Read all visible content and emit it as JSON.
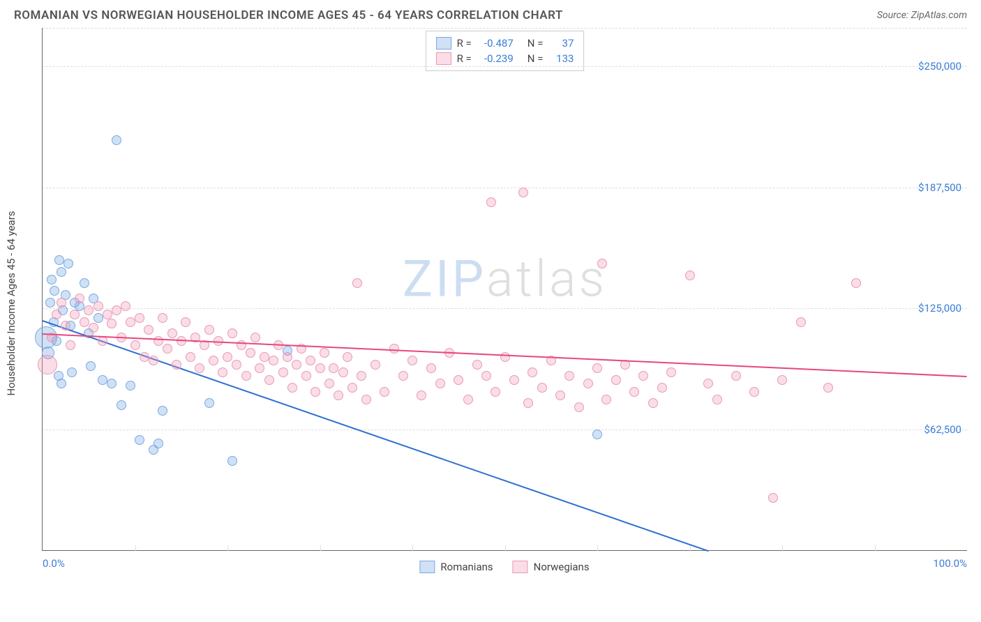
{
  "header": {
    "title": "ROMANIAN VS NORWEGIAN HOUSEHOLDER INCOME AGES 45 - 64 YEARS CORRELATION CHART",
    "source": "Source: ZipAtlas.com"
  },
  "chart": {
    "type": "scatter",
    "ylabel": "Householder Income Ages 45 - 64 years",
    "xlim": [
      0,
      100
    ],
    "ylim": [
      0,
      270000
    ],
    "x_ticks_pct": [
      0,
      10,
      20,
      30,
      40,
      50,
      60,
      70,
      80,
      90,
      100
    ],
    "x_tick_labels": {
      "left": "0.0%",
      "right": "100.0%"
    },
    "y_ticks": [
      62500,
      125000,
      187500,
      250000
    ],
    "y_tick_labels": [
      "$62,500",
      "$125,000",
      "$187,500",
      "$250,000"
    ],
    "background_color": "#ffffff",
    "grid_color": "#dddddd",
    "axis_color": "#666666",
    "tick_label_color": "#3b7dd8",
    "series": [
      {
        "key": "romanians",
        "label": "Romanians",
        "fill": "rgba(120,170,230,0.35)",
        "stroke": "#7aa9e0",
        "trend_color": "#2e6fd1",
        "marker_radius": 7,
        "R": "-0.487",
        "N": "37",
        "trend": {
          "x1": 0,
          "y1": 119000,
          "x2": 72,
          "y2": 0
        },
        "points": [
          {
            "x": 0.4,
            "y": 110000,
            "r": 16
          },
          {
            "x": 0.6,
            "y": 102000,
            "r": 9
          },
          {
            "x": 0.8,
            "y": 128000
          },
          {
            "x": 1.0,
            "y": 140000
          },
          {
            "x": 1.2,
            "y": 118000
          },
          {
            "x": 1.3,
            "y": 134000
          },
          {
            "x": 1.5,
            "y": 108000
          },
          {
            "x": 1.7,
            "y": 90000
          },
          {
            "x": 1.8,
            "y": 150000
          },
          {
            "x": 2.0,
            "y": 144000
          },
          {
            "x": 2.2,
            "y": 124000
          },
          {
            "x": 2.5,
            "y": 132000
          },
          {
            "x": 2.8,
            "y": 148000
          },
          {
            "x": 3.0,
            "y": 116000
          },
          {
            "x": 3.5,
            "y": 128000
          },
          {
            "x": 4.0,
            "y": 126000
          },
          {
            "x": 4.5,
            "y": 138000
          },
          {
            "x": 5.0,
            "y": 112000
          },
          {
            "x": 5.2,
            "y": 95000
          },
          {
            "x": 5.5,
            "y": 130000
          },
          {
            "x": 2.0,
            "y": 86000
          },
          {
            "x": 3.2,
            "y": 92000
          },
          {
            "x": 6.0,
            "y": 120000
          },
          {
            "x": 6.5,
            "y": 88000
          },
          {
            "x": 7.5,
            "y": 86000
          },
          {
            "x": 8.5,
            "y": 75000
          },
          {
            "x": 9.5,
            "y": 85000
          },
          {
            "x": 10.5,
            "y": 57000
          },
          {
            "x": 12.0,
            "y": 52000
          },
          {
            "x": 12.5,
            "y": 55000
          },
          {
            "x": 13.0,
            "y": 72000
          },
          {
            "x": 18.0,
            "y": 76000
          },
          {
            "x": 20.5,
            "y": 46000
          },
          {
            "x": 8.0,
            "y": 212000
          },
          {
            "x": 26.5,
            "y": 103000
          },
          {
            "x": 60.0,
            "y": 60000
          }
        ]
      },
      {
        "key": "norwegians",
        "label": "Norwegians",
        "fill": "rgba(240,150,180,0.32)",
        "stroke": "#e999b6",
        "trend_color": "#e6487a",
        "marker_radius": 7,
        "R": "-0.239",
        "N": "133",
        "trend": {
          "x1": 0,
          "y1": 112000,
          "x2": 100,
          "y2": 90000
        },
        "points": [
          {
            "x": 0.5,
            "y": 96000,
            "r": 14
          },
          {
            "x": 1.0,
            "y": 110000
          },
          {
            "x": 1.5,
            "y": 122000
          },
          {
            "x": 2.0,
            "y": 128000
          },
          {
            "x": 2.5,
            "y": 116000
          },
          {
            "x": 3.0,
            "y": 106000
          },
          {
            "x": 3.5,
            "y": 122000
          },
          {
            "x": 4.0,
            "y": 130000
          },
          {
            "x": 4.5,
            "y": 118000
          },
          {
            "x": 5.0,
            "y": 124000
          },
          {
            "x": 5.5,
            "y": 115000
          },
          {
            "x": 6.0,
            "y": 126000
          },
          {
            "x": 6.5,
            "y": 108000
          },
          {
            "x": 7.0,
            "y": 122000
          },
          {
            "x": 7.5,
            "y": 117000
          },
          {
            "x": 8.0,
            "y": 124000
          },
          {
            "x": 8.5,
            "y": 110000
          },
          {
            "x": 9.0,
            "y": 126000
          },
          {
            "x": 9.5,
            "y": 118000
          },
          {
            "x": 10.0,
            "y": 106000
          },
          {
            "x": 10.5,
            "y": 120000
          },
          {
            "x": 11.0,
            "y": 100000
          },
          {
            "x": 11.5,
            "y": 114000
          },
          {
            "x": 12.0,
            "y": 98000
          },
          {
            "x": 12.5,
            "y": 108000
          },
          {
            "x": 13.0,
            "y": 120000
          },
          {
            "x": 13.5,
            "y": 104000
          },
          {
            "x": 14.0,
            "y": 112000
          },
          {
            "x": 14.5,
            "y": 96000
          },
          {
            "x": 15.0,
            "y": 108000
          },
          {
            "x": 15.5,
            "y": 118000
          },
          {
            "x": 16.0,
            "y": 100000
          },
          {
            "x": 16.5,
            "y": 110000
          },
          {
            "x": 17.0,
            "y": 94000
          },
          {
            "x": 17.5,
            "y": 106000
          },
          {
            "x": 18.0,
            "y": 114000
          },
          {
            "x": 18.5,
            "y": 98000
          },
          {
            "x": 19.0,
            "y": 108000
          },
          {
            "x": 19.5,
            "y": 92000
          },
          {
            "x": 20.0,
            "y": 100000
          },
          {
            "x": 20.5,
            "y": 112000
          },
          {
            "x": 21.0,
            "y": 96000
          },
          {
            "x": 21.5,
            "y": 106000
          },
          {
            "x": 22.0,
            "y": 90000
          },
          {
            "x": 22.5,
            "y": 102000
          },
          {
            "x": 23.0,
            "y": 110000
          },
          {
            "x": 23.5,
            "y": 94000
          },
          {
            "x": 24.0,
            "y": 100000
          },
          {
            "x": 24.5,
            "y": 88000
          },
          {
            "x": 25.0,
            "y": 98000
          },
          {
            "x": 25.5,
            "y": 106000
          },
          {
            "x": 26.0,
            "y": 92000
          },
          {
            "x": 26.5,
            "y": 100000
          },
          {
            "x": 27.0,
            "y": 84000
          },
          {
            "x": 27.5,
            "y": 96000
          },
          {
            "x": 28.0,
            "y": 104000
          },
          {
            "x": 28.5,
            "y": 90000
          },
          {
            "x": 29.0,
            "y": 98000
          },
          {
            "x": 29.5,
            "y": 82000
          },
          {
            "x": 30.0,
            "y": 94000
          },
          {
            "x": 30.5,
            "y": 102000
          },
          {
            "x": 31.0,
            "y": 86000
          },
          {
            "x": 31.5,
            "y": 94000
          },
          {
            "x": 32.0,
            "y": 80000
          },
          {
            "x": 32.5,
            "y": 92000
          },
          {
            "x": 33.0,
            "y": 100000
          },
          {
            "x": 33.5,
            "y": 84000
          },
          {
            "x": 34.0,
            "y": 138000
          },
          {
            "x": 34.5,
            "y": 90000
          },
          {
            "x": 35.0,
            "y": 78000
          },
          {
            "x": 36.0,
            "y": 96000
          },
          {
            "x": 37.0,
            "y": 82000
          },
          {
            "x": 38.0,
            "y": 104000
          },
          {
            "x": 39.0,
            "y": 90000
          },
          {
            "x": 40.0,
            "y": 98000
          },
          {
            "x": 41.0,
            "y": 80000
          },
          {
            "x": 42.0,
            "y": 94000
          },
          {
            "x": 43.0,
            "y": 86000
          },
          {
            "x": 44.0,
            "y": 102000
          },
          {
            "x": 45.0,
            "y": 88000
          },
          {
            "x": 46.0,
            "y": 78000
          },
          {
            "x": 47.0,
            "y": 96000
          },
          {
            "x": 48.0,
            "y": 90000
          },
          {
            "x": 48.5,
            "y": 180000
          },
          {
            "x": 49.0,
            "y": 82000
          },
          {
            "x": 50.0,
            "y": 100000
          },
          {
            "x": 51.0,
            "y": 88000
          },
          {
            "x": 52.0,
            "y": 185000
          },
          {
            "x": 52.5,
            "y": 76000
          },
          {
            "x": 53.0,
            "y": 92000
          },
          {
            "x": 54.0,
            "y": 84000
          },
          {
            "x": 55.0,
            "y": 98000
          },
          {
            "x": 56.0,
            "y": 80000
          },
          {
            "x": 57.0,
            "y": 90000
          },
          {
            "x": 58.0,
            "y": 74000
          },
          {
            "x": 59.0,
            "y": 86000
          },
          {
            "x": 60.0,
            "y": 94000
          },
          {
            "x": 60.5,
            "y": 148000
          },
          {
            "x": 61.0,
            "y": 78000
          },
          {
            "x": 62.0,
            "y": 88000
          },
          {
            "x": 63.0,
            "y": 96000
          },
          {
            "x": 64.0,
            "y": 82000
          },
          {
            "x": 65.0,
            "y": 90000
          },
          {
            "x": 66.0,
            "y": 76000
          },
          {
            "x": 67.0,
            "y": 84000
          },
          {
            "x": 68.0,
            "y": 92000
          },
          {
            "x": 70.0,
            "y": 142000
          },
          {
            "x": 72.0,
            "y": 86000
          },
          {
            "x": 73.0,
            "y": 78000
          },
          {
            "x": 75.0,
            "y": 90000
          },
          {
            "x": 77.0,
            "y": 82000
          },
          {
            "x": 79.0,
            "y": 27000
          },
          {
            "x": 80.0,
            "y": 88000
          },
          {
            "x": 82.0,
            "y": 118000
          },
          {
            "x": 85.0,
            "y": 84000
          },
          {
            "x": 88.0,
            "y": 138000
          }
        ]
      }
    ],
    "watermark": {
      "z": "ZIP",
      "rest": "atlas"
    },
    "stats_labels": {
      "R": "R =",
      "N": "N ="
    },
    "bottom_legend": [
      "Romanians",
      "Norwegians"
    ]
  }
}
